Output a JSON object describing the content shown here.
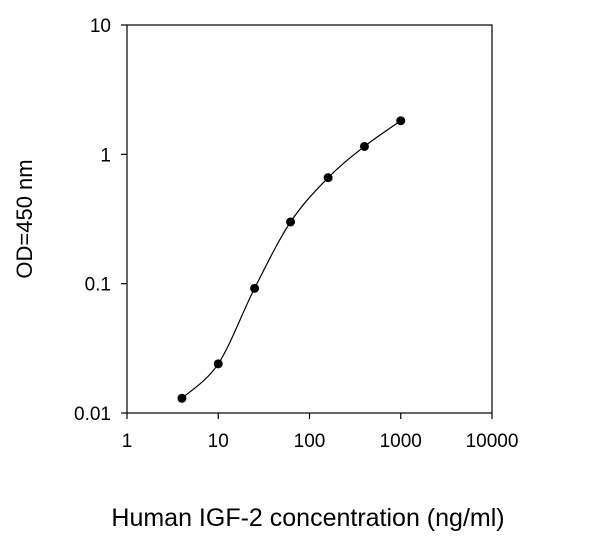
{
  "chart_data": {
    "type": "line",
    "title": "",
    "xlabel": "Human IGF-2 concentration (ng/ml)",
    "ylabel": "OD=450 nm",
    "xscale": "log",
    "yscale": "log",
    "xlim": [
      1,
      10000
    ],
    "ylim": [
      0.01,
      10
    ],
    "x_ticks": [
      1,
      10,
      100,
      1000,
      10000
    ],
    "x_tick_labels": [
      "1",
      "10",
      "100",
      "1000",
      "10000"
    ],
    "y_ticks": [
      0.01,
      0.1,
      1,
      10
    ],
    "y_tick_labels": [
      "0.01",
      "0.1",
      "1",
      "10"
    ],
    "grid": false,
    "legend": "none",
    "series": [
      {
        "x": [
          4,
          10,
          25,
          62,
          160,
          400,
          1000
        ],
        "y": [
          0.013,
          0.024,
          0.092,
          0.3,
          0.66,
          1.15,
          1.82
        ]
      }
    ],
    "line_color": "#000000",
    "marker_color": "#000000"
  }
}
